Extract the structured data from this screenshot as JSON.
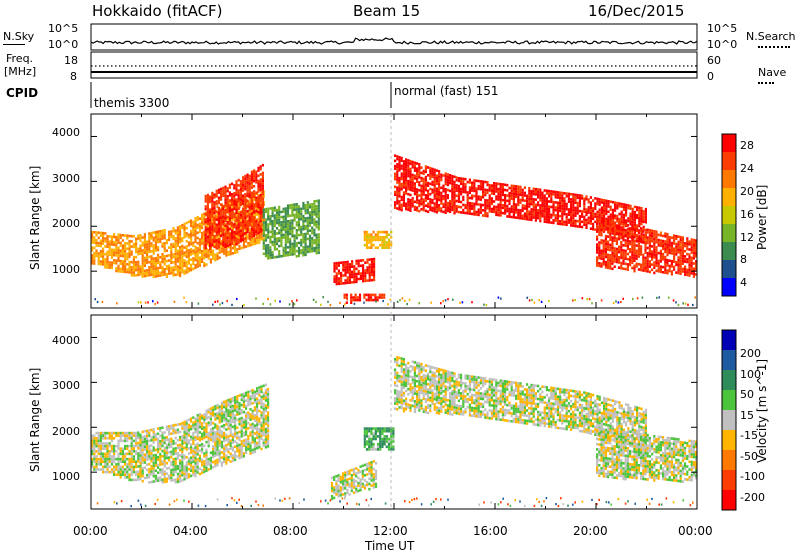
{
  "header": {
    "station": "Hokkaido (fitACF)",
    "beam": "Beam 15",
    "date": "16/Dec/2015"
  },
  "top_panels": {
    "nsky_label": "N.Sky",
    "nsky_ticks": [
      "10^5",
      "10^0"
    ],
    "nsearch_label": "N.Search",
    "nsearch_ticks": [
      "10^5",
      "10^0"
    ],
    "freq_label_1": "Freq.",
    "freq_label_2": "[MHz]",
    "freq_ticks": [
      "18",
      "8"
    ],
    "nave_label": "Nave",
    "nave_ticks": [
      "60",
      "0"
    ],
    "cpid_label": "CPID",
    "cpid_segments": [
      {
        "label": "themis 3300"
      },
      {
        "label": "normal (fast) 151"
      }
    ]
  },
  "axes": {
    "x_ticks": [
      "00:00",
      "04:00",
      "08:00",
      "12:00",
      "16:00",
      "20:00",
      "00:00"
    ],
    "x_label": "Time UT",
    "y_ticks": [
      "4000",
      "3000",
      "2000",
      "1000"
    ],
    "y_label": "Slant Range [km]"
  },
  "power_colorbar": {
    "label": "Power [dB]",
    "ticks": [
      "28",
      "24",
      "20",
      "16",
      "12",
      "8",
      "4"
    ],
    "colors": [
      "#ff0000",
      "#ff3c00",
      "#ff7800",
      "#ffb000",
      "#c8c800",
      "#78b428",
      "#3c8c50",
      "#1e5090",
      "#0000ff"
    ]
  },
  "velocity_colorbar": {
    "label": "Velocity [m s^-1]",
    "ticks": [
      "200",
      "100",
      "50",
      "15",
      "-15",
      "-50",
      "-100",
      "-200"
    ],
    "colors": [
      "#0000b4",
      "#1e5aa0",
      "#2d8c5a",
      "#4cc43c",
      "#c0c0c0",
      "#ffb400",
      "#ff7800",
      "#ff3c00",
      "#ff0000"
    ]
  },
  "chart_data": [
    {
      "type": "heatmap",
      "title": "Power [dB]",
      "xlabel": "Time UT",
      "ylabel": "Slant Range [km]",
      "x_range_hours": [
        0,
        24
      ],
      "y_range_km": [
        180,
        4500
      ],
      "value_range": [
        0,
        30
      ],
      "regions": [
        {
          "t0": 0.0,
          "t1": 6.8,
          "r_lo": [
            1200,
            900,
            900,
            1300,
            1700
          ],
          "r_hi": [
            1900,
            1800,
            2000,
            2500,
            2800
          ],
          "value": 20
        },
        {
          "t0": 4.5,
          "t1": 6.8,
          "r_lo": [
            1500,
            1600,
            1900
          ],
          "r_hi": [
            2700,
            3000,
            3400
          ],
          "value": 26
        },
        {
          "t0": 6.8,
          "t1": 9.0,
          "r_lo": [
            1300,
            1400
          ],
          "r_hi": [
            2400,
            2600
          ],
          "value": 10
        },
        {
          "t0": 9.6,
          "t1": 11.2,
          "r_lo": [
            700,
            800
          ],
          "r_hi": [
            1200,
            1300
          ],
          "value": 28
        },
        {
          "t0": 10.0,
          "t1": 11.6,
          "r_lo": [
            300,
            400
          ],
          "r_hi": [
            500,
            500
          ],
          "value": 27
        },
        {
          "t0": 10.8,
          "t1": 11.9,
          "r_lo": [
            1500,
            1500
          ],
          "r_hi": [
            1900,
            1900
          ],
          "value": 18
        },
        {
          "t0": 12.0,
          "t1": 22.0,
          "r_lo": [
            2400,
            2300,
            2200,
            2000,
            1600
          ],
          "r_hi": [
            3600,
            3100,
            2900,
            2700,
            2400
          ],
          "value": 28
        },
        {
          "t0": 20.0,
          "t1": 24.0,
          "r_lo": [
            1100,
            900
          ],
          "r_hi": [
            2200,
            1700
          ],
          "value": 26
        }
      ]
    },
    {
      "type": "heatmap",
      "title": "Velocity [m s^-1]",
      "xlabel": "Time UT",
      "ylabel": "Slant Range [km]",
      "x_range_hours": [
        0,
        24
      ],
      "y_range_km": [
        180,
        4500
      ],
      "value_range": [
        -200,
        200
      ],
      "regions": [
        {
          "t0": 0.0,
          "t1": 7.0,
          "r_lo": [
            1100,
            800,
            800,
            1200,
            1600
          ],
          "r_hi": [
            1900,
            1900,
            2100,
            2600,
            3000
          ],
          "value": 0
        },
        {
          "t0": 9.5,
          "t1": 11.3,
          "r_lo": [
            400,
            700
          ],
          "r_hi": [
            900,
            1300
          ],
          "value": 0
        },
        {
          "t0": 10.8,
          "t1": 12.0,
          "r_lo": [
            1500,
            1500
          ],
          "r_hi": [
            2000,
            2000
          ],
          "value": 45
        },
        {
          "t0": 12.0,
          "t1": 22.0,
          "r_lo": [
            2400,
            2300,
            2100,
            1900,
            1500
          ],
          "r_hi": [
            3600,
            3200,
            3000,
            2800,
            2400
          ],
          "value": 0
        },
        {
          "t0": 20.0,
          "t1": 24.0,
          "r_lo": [
            900,
            800
          ],
          "r_hi": [
            2000,
            1700
          ],
          "value": 0
        }
      ]
    }
  ]
}
